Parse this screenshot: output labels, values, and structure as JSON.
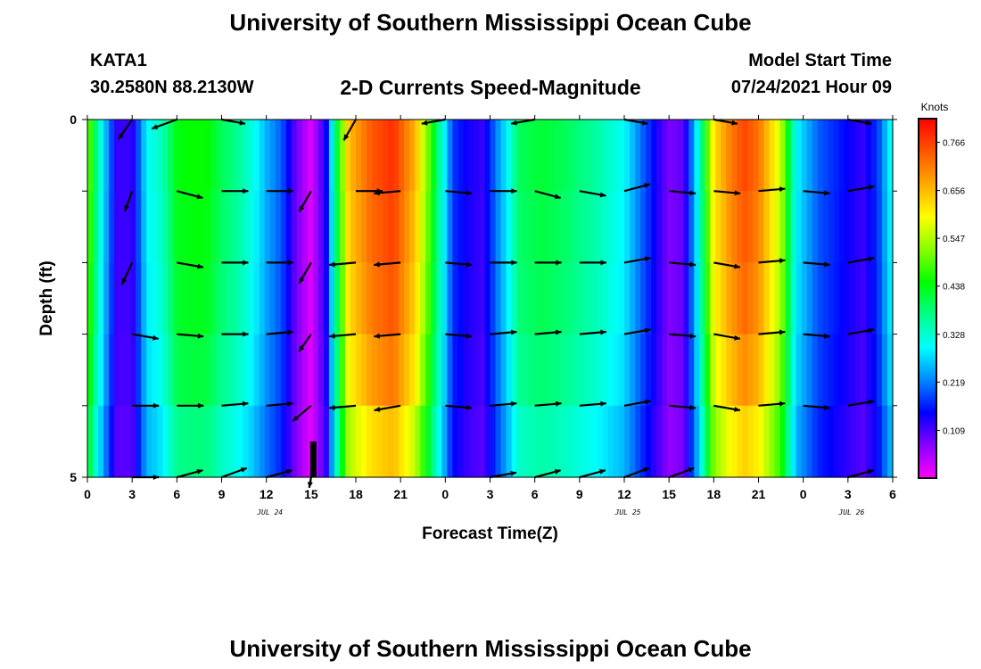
{
  "page": {
    "title_top": "University of Southern Mississippi Ocean Cube",
    "title_bottom": "University of Southern Mississippi Ocean Cube",
    "station": "KATA1",
    "coords": "30.2580N  88.2130W",
    "subtitle": "2-D Currents Speed-Magnitude",
    "model_start_label": "Model Start Time",
    "model_start_value": "07/24/2021 Hour 09"
  },
  "chart_data": {
    "type": "heatmap",
    "title": "2-D Currents Speed-Magnitude",
    "xlabel": "Forecast Time(Z)",
    "ylabel": "Depth (ft)",
    "x_range_hours": [
      0,
      54
    ],
    "y_range_ft": [
      0,
      5
    ],
    "x_tick_labels": [
      "0",
      "3",
      "6",
      "9",
      "12",
      "15",
      "18",
      "21",
      "0",
      "3",
      "6",
      "9",
      "12",
      "15",
      "18",
      "21",
      "0",
      "3",
      "6"
    ],
    "x_date_labels": [
      {
        "text": "JUL 24",
        "hour": 12
      },
      {
        "text": "JUL 25",
        "hour": 36
      },
      {
        "text": "JUL 26",
        "hour": 51
      }
    ],
    "y_tick_labels": [
      "0",
      "5"
    ],
    "y_tick_count": 6,
    "colorbar": {
      "title": "Knots",
      "min": 0.0,
      "max": 0.82,
      "ticks": [
        0.109,
        0.219,
        0.328,
        0.438,
        0.547,
        0.656,
        0.766
      ],
      "tick_labels": [
        "0.109",
        "0.219",
        "0.328",
        "0.438",
        "0.547",
        "0.656",
        "0.766"
      ],
      "palette": [
        "#ff00ff",
        "#8800ff",
        "#0000ff",
        "#0088ff",
        "#00ffff",
        "#00ff88",
        "#00ff00",
        "#88ff00",
        "#ffff00",
        "#ffaa00",
        "#ff5500",
        "#ff0000"
      ]
    },
    "depth_levels": 5,
    "speed_profile": [
      {
        "h": 0.0,
        "v": 0.52
      },
      {
        "h": 0.6,
        "v": 0.38
      },
      {
        "h": 1.2,
        "v": 0.26
      },
      {
        "h": 2.0,
        "v": 0.12
      },
      {
        "h": 3.0,
        "v": 0.12
      },
      {
        "h": 4.0,
        "v": 0.3
      },
      {
        "h": 5.0,
        "v": 0.34
      },
      {
        "h": 6.0,
        "v": 0.44
      },
      {
        "h": 7.0,
        "v": 0.45
      },
      {
        "h": 8.0,
        "v": 0.45
      },
      {
        "h": 9.0,
        "v": 0.4
      },
      {
        "h": 10.0,
        "v": 0.37
      },
      {
        "h": 11.0,
        "v": 0.32
      },
      {
        "h": 12.0,
        "v": 0.25
      },
      {
        "h": 13.0,
        "v": 0.2
      },
      {
        "h": 14.0,
        "v": 0.09
      },
      {
        "h": 15.0,
        "v": 0.02
      },
      {
        "h": 16.0,
        "v": 0.14
      },
      {
        "h": 16.7,
        "v": 0.4
      },
      {
        "h": 17.5,
        "v": 0.65
      },
      {
        "h": 19.0,
        "v": 0.74
      },
      {
        "h": 20.5,
        "v": 0.78
      },
      {
        "h": 22.0,
        "v": 0.66
      },
      {
        "h": 23.0,
        "v": 0.48
      },
      {
        "h": 24.0,
        "v": 0.28
      },
      {
        "h": 24.5,
        "v": 0.18
      },
      {
        "h": 25.5,
        "v": 0.14
      },
      {
        "h": 26.5,
        "v": 0.12
      },
      {
        "h": 28.0,
        "v": 0.28
      },
      {
        "h": 29.0,
        "v": 0.4
      },
      {
        "h": 30.5,
        "v": 0.42
      },
      {
        "h": 32.0,
        "v": 0.4
      },
      {
        "h": 34.0,
        "v": 0.36
      },
      {
        "h": 36.0,
        "v": 0.3
      },
      {
        "h": 37.0,
        "v": 0.22
      },
      {
        "h": 38.0,
        "v": 0.15
      },
      {
        "h": 39.0,
        "v": 0.08
      },
      {
        "h": 40.0,
        "v": 0.1
      },
      {
        "h": 41.0,
        "v": 0.32
      },
      {
        "h": 42.0,
        "v": 0.62
      },
      {
        "h": 43.0,
        "v": 0.7
      },
      {
        "h": 44.0,
        "v": 0.76
      },
      {
        "h": 45.0,
        "v": 0.72
      },
      {
        "h": 46.5,
        "v": 0.56
      },
      {
        "h": 47.5,
        "v": 0.3
      },
      {
        "h": 49.0,
        "v": 0.2
      },
      {
        "h": 50.5,
        "v": 0.16
      },
      {
        "h": 52.0,
        "v": 0.12
      },
      {
        "h": 53.0,
        "v": 0.18
      },
      {
        "h": 54.0,
        "v": 0.32
      }
    ],
    "depth_factors": [
      1.0,
      0.98,
      0.96,
      0.92,
      0.84,
      0.72
    ],
    "vector_hours": [
      3,
      6,
      9,
      12,
      15,
      18,
      21,
      24,
      27,
      30,
      33,
      36,
      39,
      42,
      45,
      48,
      51
    ],
    "vector_depths_ft": [
      0,
      1,
      2,
      3,
      4,
      5
    ],
    "vector_directions_deg": [
      [
        -125,
        -160,
        -10,
        null,
        null,
        -120,
        null,
        -170,
        null,
        -170,
        null,
        -10,
        null,
        -10,
        null,
        null,
        -10
      ],
      [
        -110,
        -15,
        0,
        0,
        -120,
        0,
        -175,
        -5,
        0,
        -15,
        -10,
        15,
        -5,
        -5,
        5,
        -5,
        10
      ],
      [
        -115,
        -10,
        0,
        0,
        -120,
        -175,
        -175,
        -5,
        0,
        0,
        0,
        10,
        -5,
        -10,
        5,
        -5,
        10
      ],
      [
        -10,
        -5,
        0,
        5,
        -125,
        -175,
        -175,
        -5,
        5,
        5,
        5,
        10,
        -5,
        -10,
        5,
        -5,
        10
      ],
      [
        0,
        0,
        5,
        5,
        -140,
        -175,
        -170,
        -5,
        5,
        5,
        5,
        10,
        -5,
        -10,
        5,
        -5,
        10
      ],
      [
        0,
        15,
        20,
        15,
        -100,
        null,
        null,
        null,
        10,
        15,
        15,
        20,
        20,
        null,
        null,
        null,
        15
      ]
    ],
    "vector_lengths": [
      [
        0.9,
        1.0,
        0.9,
        0,
        0,
        0.9,
        0,
        0.9,
        0,
        0.9,
        0,
        0.9,
        0,
        0.9,
        0,
        0,
        0.9
      ],
      [
        0.8,
        1.0,
        1.0,
        1.0,
        0.9,
        1.0,
        1.0,
        1.0,
        1.0,
        1.0,
        1.0,
        1.0,
        1.0,
        1.0,
        1.0,
        1.0,
        1.0
      ],
      [
        0.9,
        1.0,
        1.0,
        1.0,
        0.9,
        1.0,
        1.0,
        1.0,
        1.0,
        1.0,
        1.0,
        1.0,
        1.0,
        1.0,
        1.0,
        1.0,
        1.0
      ],
      [
        1.0,
        1.0,
        1.0,
        1.0,
        0.8,
        1.0,
        1.0,
        1.0,
        1.0,
        1.0,
        1.0,
        1.0,
        1.0,
        1.0,
        1.0,
        1.0,
        1.0
      ],
      [
        1.0,
        1.0,
        1.0,
        1.0,
        0.9,
        1.0,
        1.0,
        1.0,
        1.0,
        1.0,
        1.0,
        1.0,
        1.0,
        1.0,
        1.0,
        1.0,
        1.0
      ],
      [
        1.0,
        1.0,
        1.0,
        1.0,
        0.4,
        0,
        0,
        0,
        1.0,
        1.0,
        1.0,
        1.0,
        1.0,
        0,
        0,
        0,
        1.0
      ]
    ]
  },
  "colors": {
    "background": "#ffffff",
    "axis": "#000000",
    "vector": "#000000"
  }
}
